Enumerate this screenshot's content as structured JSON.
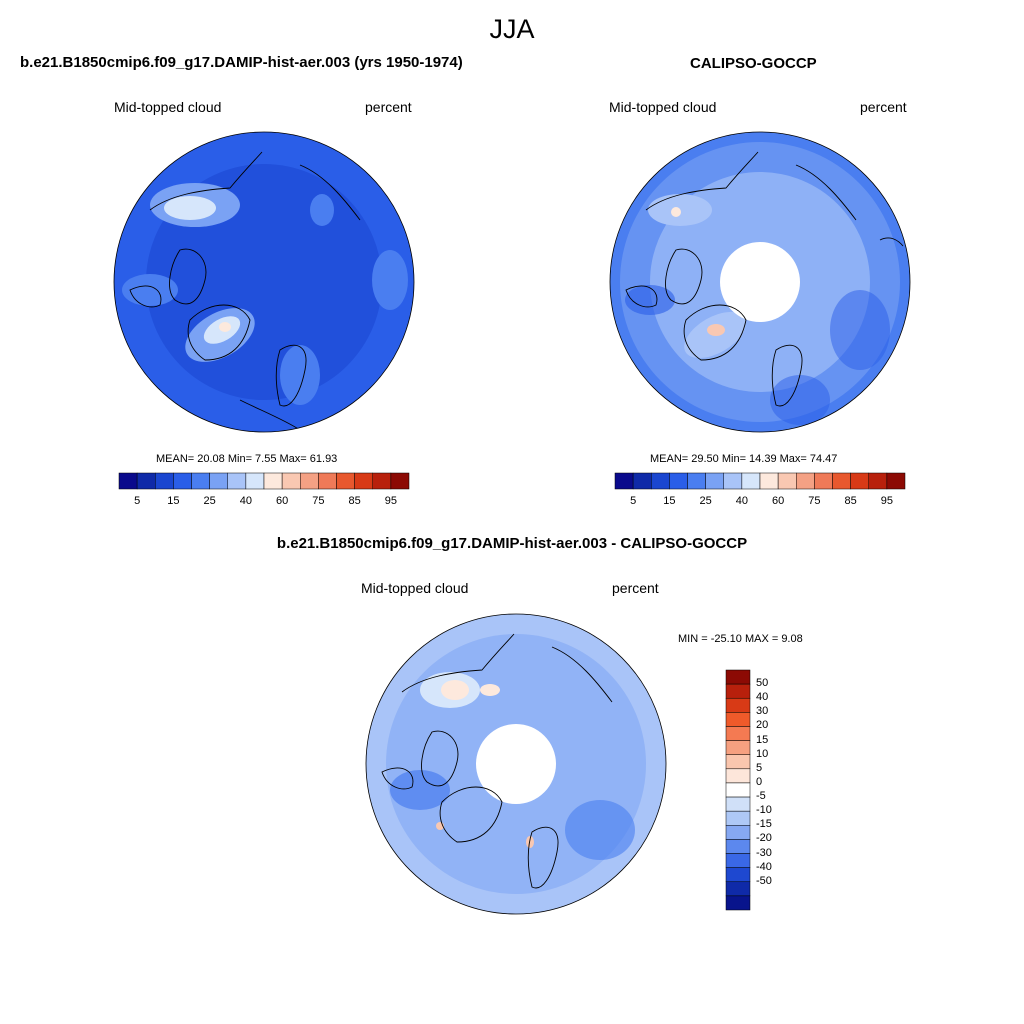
{
  "figure": {
    "title": "JJA"
  },
  "panels": {
    "model": {
      "title": "b.e21.B1850cmip6.f09_g17.DAMIP-hist-aer.003 (yrs 1950-1974)",
      "left_label": "Mid-topped cloud",
      "right_label": "percent",
      "stats": "MEAN=  20.08  Min=   7.55  Max=  61.93"
    },
    "obs": {
      "title": "CALIPSO-GOCCP",
      "left_label": "Mid-topped cloud",
      "right_label": "percent",
      "stats": "MEAN=  29.50  Min=  14.39  Max=  74.47"
    },
    "diff": {
      "title": "b.e21.B1850cmip6.f09_g17.DAMIP-hist-aer.003 - CALIPSO-GOCCP",
      "left_label": "Mid-topped cloud",
      "right_label": "percent",
      "stats": "MIN = -25.10 MAX =   9.08"
    }
  },
  "colorbars": {
    "field": {
      "colors": [
        "#0a0a8c",
        "#0f2aa8",
        "#1a46d0",
        "#2a5ee8",
        "#4a7ef0",
        "#7aa2f4",
        "#a9c4f8",
        "#d6e6fb",
        "#fde9dd",
        "#f9c8b2",
        "#f4a184",
        "#ef7a58",
        "#e8582e",
        "#d83a16",
        "#b8200c",
        "#8c0a04"
      ],
      "tick_labels": [
        "5",
        "15",
        "25",
        "40",
        "60",
        "75",
        "85",
        "95"
      ]
    },
    "diff": {
      "colors": [
        "#8c0a04",
        "#b8200c",
        "#d83a16",
        "#ef5a2a",
        "#f47a52",
        "#f6a080",
        "#fac6ae",
        "#fde6da",
        "#ffffff",
        "#d0e0f8",
        "#aec8f6",
        "#86a8f2",
        "#5c88ee",
        "#3a68e6",
        "#1e48d0",
        "#0f2aa8",
        "#08148c"
      ],
      "tick_labels": [
        "50",
        "40",
        "30",
        "20",
        "15",
        "10",
        "5",
        "0",
        "-5",
        "-10",
        "-15",
        "-20",
        "-30",
        "-40",
        "-50"
      ]
    }
  },
  "map_colors": {
    "deep": "#1a46d0",
    "mid": "#2a5ee8",
    "light": "#4a7ef0",
    "pale": "#7aa2f4",
    "paler": "#a9c4f8",
    "palest": "#d6e6fb",
    "warm": "#fde9dd",
    "warm2": "#f9c8b2",
    "coast": "#000000"
  }
}
